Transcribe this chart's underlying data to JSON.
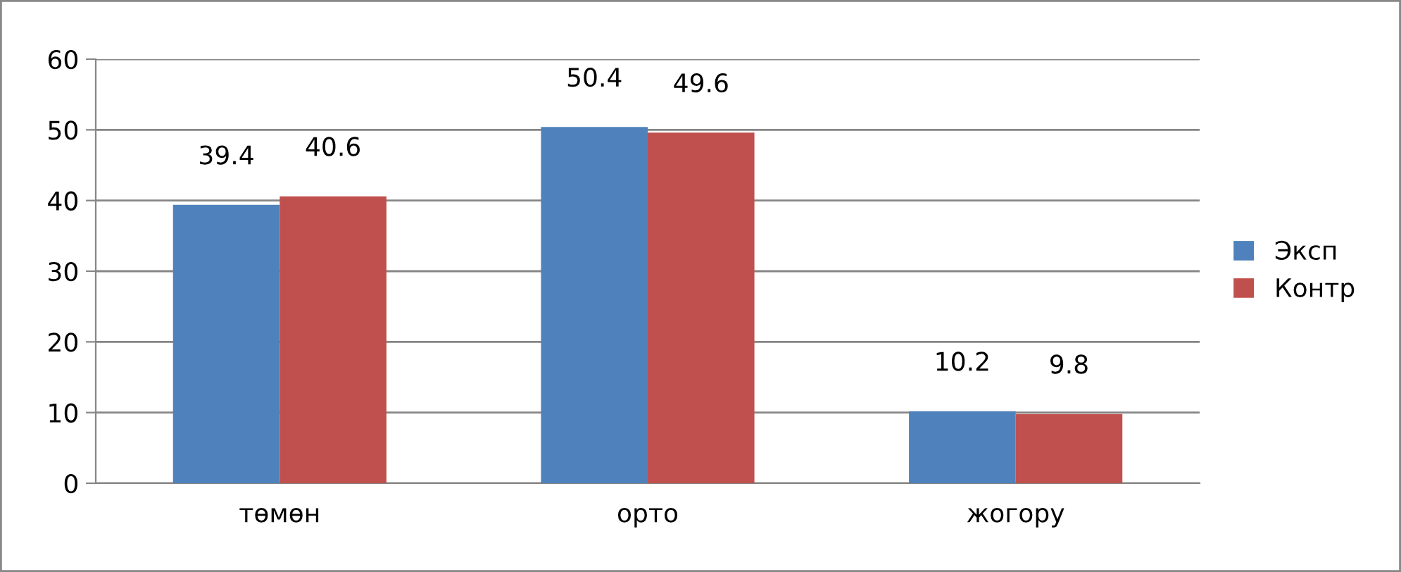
{
  "chart_data": {
    "type": "bar",
    "categories": [
      "төмөн",
      "орто",
      "жогору"
    ],
    "series": [
      {
        "name": "Эксп",
        "color": "#4f81bd",
        "values": [
          39.4,
          50.4,
          10.2
        ]
      },
      {
        "name": "Контр",
        "color": "#c0504d",
        "values": [
          40.6,
          49.6,
          9.8
        ]
      }
    ],
    "ylim": [
      0,
      60
    ],
    "yticks": [
      0,
      10,
      20,
      30,
      40,
      50,
      60
    ],
    "grid": "y",
    "legend": "right",
    "data_labels": true
  }
}
